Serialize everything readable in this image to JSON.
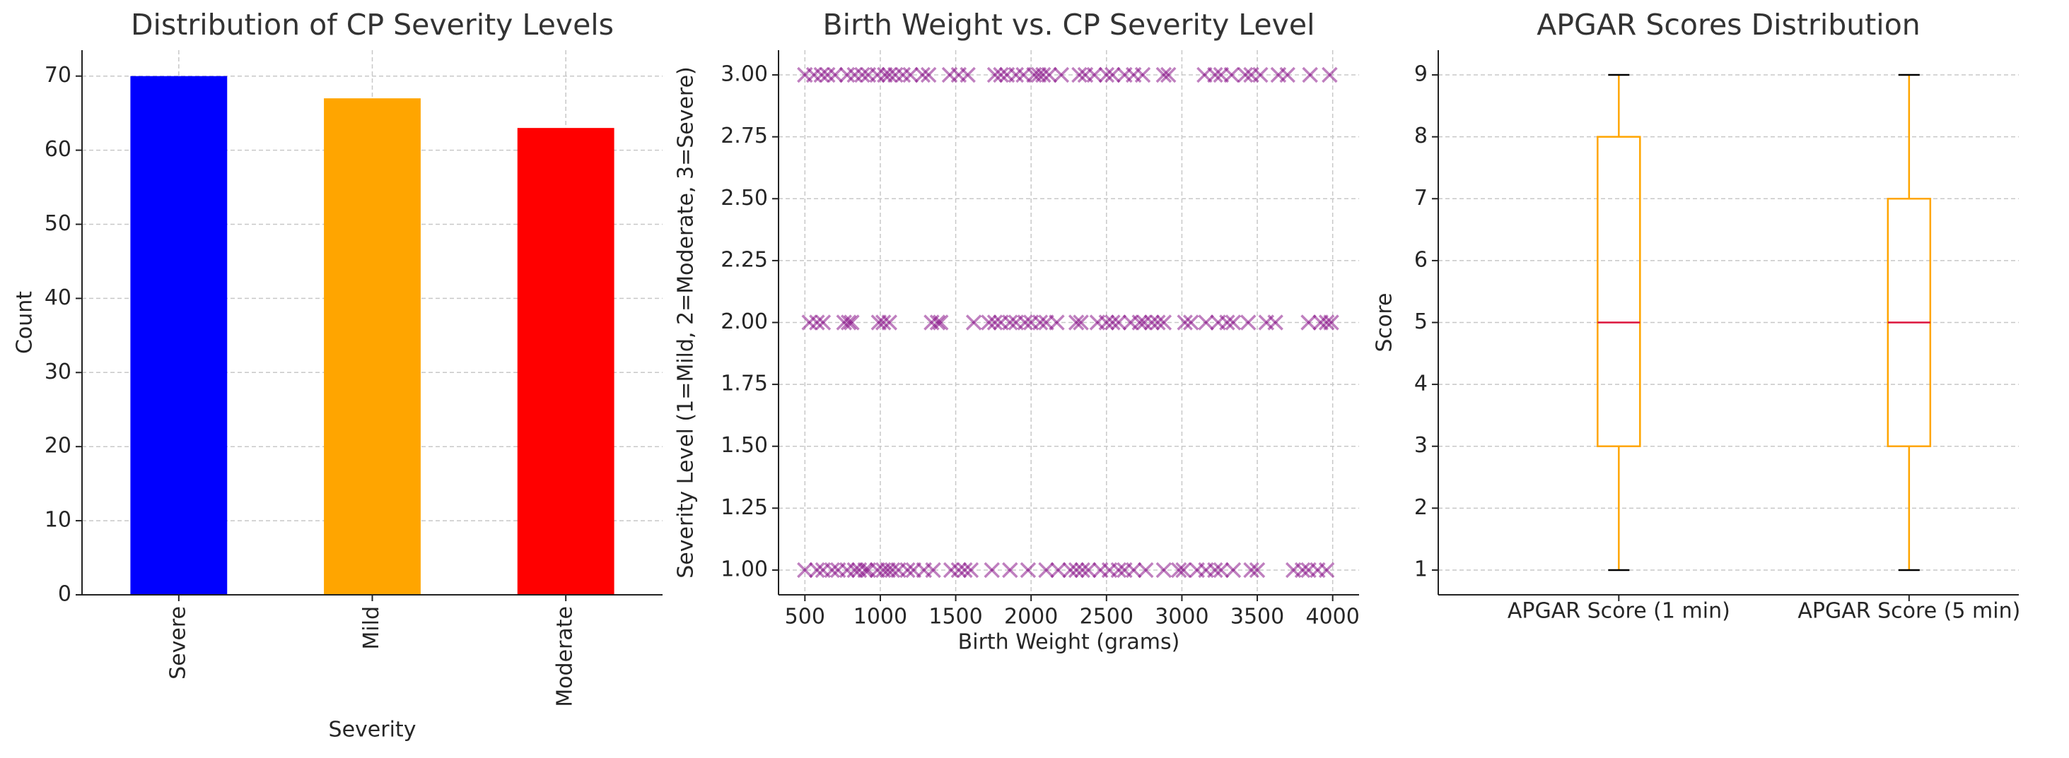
{
  "chart_data": [
    {
      "type": "bar",
      "title": "Distribution of CP Severity Levels",
      "x_label": "Severity",
      "y_label": "Count",
      "categories": [
        "Severe",
        "Mild",
        "Moderate"
      ],
      "values": [
        70,
        67,
        63
      ],
      "colors": [
        "blue",
        "orange",
        "red"
      ],
      "ylim": [
        0,
        73.5
      ],
      "yticks": [
        0,
        10,
        20,
        30,
        40,
        50,
        60,
        70
      ],
      "grid": true
    },
    {
      "type": "scatter",
      "title": "Birth Weight vs. CP Severity Level",
      "x_label": "Birth Weight (grams)",
      "y_label": "Severity Level (1=Mild, 2=Moderate, 3=Severe)",
      "color": "purple",
      "alpha": 0.5,
      "marker": "x",
      "x": [
        500,
        560,
        610,
        650,
        700,
        780,
        830,
        880,
        920,
        980,
        1030,
        1060,
        1100,
        1150,
        1200,
        1280,
        1320,
        1460,
        1520,
        1580,
        1760,
        1800,
        1840,
        1900,
        1950,
        2020,
        2050,
        2080,
        2120,
        2200,
        2320,
        2360,
        2420,
        2500,
        2540,
        2620,
        2680,
        2740,
        2880,
        2910,
        3150,
        3220,
        3260,
        3330,
        3420,
        3460,
        3520,
        3640,
        3700,
        3850,
        3980,
        530,
        580,
        620,
        760,
        790,
        810,
        990,
        1020,
        1060,
        1340,
        1380,
        1400,
        1620,
        1720,
        1760,
        1800,
        1860,
        1900,
        1960,
        2000,
        2060,
        2100,
        2170,
        2300,
        2330,
        2440,
        2500,
        2540,
        2580,
        2660,
        2720,
        2750,
        2800,
        2840,
        2880,
        3020,
        3060,
        3160,
        3240,
        3300,
        3340,
        3440,
        3560,
        3620,
        3840,
        3920,
        3960,
        3990,
        500,
        580,
        620,
        680,
        720,
        780,
        830,
        860,
        900,
        920,
        980,
        1020,
        1050,
        1080,
        1120,
        1180,
        1220,
        1290,
        1350,
        1470,
        1520,
        1560,
        1600,
        1740,
        1860,
        1980,
        2100,
        2180,
        2260,
        2300,
        2340,
        2380,
        2460,
        2520,
        2580,
        2620,
        2680,
        2760,
        2880,
        2980,
        3010,
        3100,
        3160,
        3220,
        3260,
        3340,
        3460,
        3500,
        3740,
        3800,
        3840,
        3900,
        3960
      ],
      "values": [
        3,
        3,
        3,
        3,
        3,
        3,
        3,
        3,
        3,
        3,
        3,
        3,
        3,
        3,
        3,
        3,
        3,
        3,
        3,
        3,
        3,
        3,
        3,
        3,
        3,
        3,
        3,
        3,
        3,
        3,
        3,
        3,
        3,
        3,
        3,
        3,
        3,
        3,
        3,
        3,
        3,
        3,
        3,
        3,
        3,
        3,
        3,
        3,
        3,
        3,
        3,
        2,
        2,
        2,
        2,
        2,
        2,
        2,
        2,
        2,
        2,
        2,
        2,
        2,
        2,
        2,
        2,
        2,
        2,
        2,
        2,
        2,
        2,
        2,
        2,
        2,
        2,
        2,
        2,
        2,
        2,
        2,
        2,
        2,
        2,
        2,
        2,
        2,
        2,
        2,
        2,
        2,
        2,
        2,
        2,
        2,
        2,
        2,
        2,
        1,
        1,
        1,
        1,
        1,
        1,
        1,
        1,
        1,
        1,
        1,
        1,
        1,
        1,
        1,
        1,
        1,
        1,
        1,
        1,
        1,
        1,
        1,
        1,
        1,
        1,
        1,
        1,
        1,
        1,
        1,
        1,
        1,
        1,
        1,
        1,
        1,
        1,
        1,
        1,
        1,
        1,
        1,
        1,
        1,
        1,
        1,
        1,
        1,
        1,
        1,
        1,
        1
      ],
      "xlim": [
        325,
        4175
      ],
      "xticks": [
        500,
        1000,
        1500,
        2000,
        2500,
        3000,
        3500,
        4000
      ],
      "ylim": [
        0.9,
        3.1
      ],
      "yticks": [
        {
          "value": 1,
          "label": "1.00"
        },
        {
          "value": 1.25,
          "label": "1.25"
        },
        {
          "value": 1.5,
          "label": "1.50"
        },
        {
          "value": 1.75,
          "label": "1.75"
        },
        {
          "value": 2,
          "label": "2.00"
        },
        {
          "value": 2.25,
          "label": "2.25"
        },
        {
          "value": 2.5,
          "label": "2.50"
        },
        {
          "value": 2.75,
          "label": "2.75"
        },
        {
          "value": 3,
          "label": "3.00"
        }
      ],
      "grid": true
    },
    {
      "type": "box",
      "title": "APGAR Scores Distribution",
      "y_label": "Score",
      "categories": [
        "APGAR Score (1 min)",
        "APGAR Score (5 min)"
      ],
      "boxes": [
        {
          "min": 1,
          "q1": 3,
          "median": 5,
          "q3": 8,
          "max": 9
        },
        {
          "min": 1,
          "q1": 3,
          "median": 5,
          "q3": 7,
          "max": 9
        }
      ],
      "box_color": "orange",
      "median_color": "crimson",
      "cap_color": "black",
      "ylim": [
        0.6,
        9.4
      ],
      "yticks": [
        1,
        2,
        3,
        4,
        5,
        6,
        7,
        8,
        9
      ],
      "grid": true
    }
  ]
}
